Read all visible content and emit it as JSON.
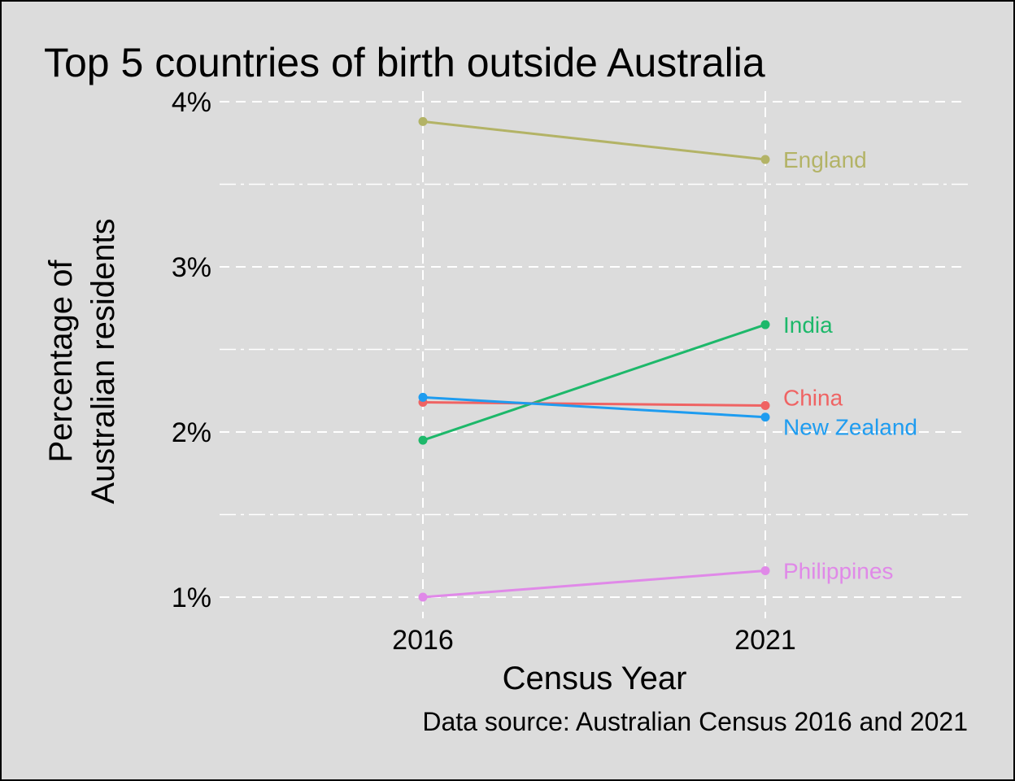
{
  "chart_data": {
    "type": "line",
    "title": "Top 5 countries of birth outside Australia",
    "xlabel": "Census Year",
    "ylabel": [
      "Percentage of",
      "Australian residents"
    ],
    "caption": "Data source: Australian Census 2016 and 2021",
    "x": [
      "2016",
      "2021"
    ],
    "ylim": [
      0.85,
      4.0
    ],
    "yticks": [
      1,
      2,
      3,
      4
    ],
    "ytick_labels": [
      "1%",
      "2%",
      "3%",
      "4%"
    ],
    "grid": true,
    "legend": "direct labels at right end",
    "series": [
      {
        "name": "England",
        "values": [
          3.88,
          3.65
        ],
        "color": "#b3b366"
      },
      {
        "name": "India",
        "values": [
          1.95,
          2.65
        ],
        "color": "#1db86a"
      },
      {
        "name": "China",
        "values": [
          2.18,
          2.16
        ],
        "color": "#ef6363"
      },
      {
        "name": "New Zealand",
        "values": [
          2.21,
          2.09
        ],
        "color": "#1e9cf0"
      },
      {
        "name": "Philippines",
        "values": [
          1.0,
          1.16
        ],
        "color": "#e089e8"
      }
    ]
  }
}
